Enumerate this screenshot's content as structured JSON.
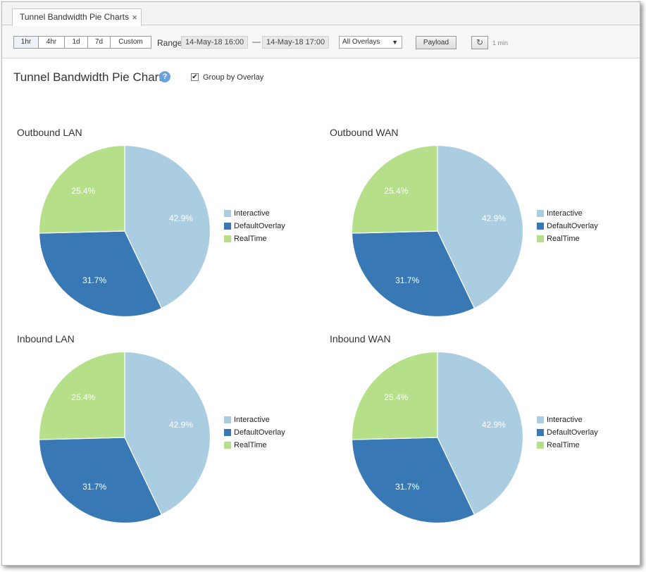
{
  "tab": {
    "label": "Tunnel Bandwidth Pie Charts",
    "close": "×"
  },
  "toolbar": {
    "time_buttons": [
      "1hr",
      "4hr",
      "1d",
      "7d",
      "Custom"
    ],
    "range_label": "Range",
    "range_start": "14-May-18 16:00",
    "range_separator": "—",
    "range_end": "14-May-18 17:00",
    "overlay_select": "All Overlays",
    "payload_label": "Payload",
    "refresh_icon": "↻",
    "interval": "1 min"
  },
  "page": {
    "title": "Tunnel Bandwidth Pie Charts",
    "help": "?",
    "group_by_label": "Group by Overlay",
    "group_by_checked": true
  },
  "colors": {
    "Interactive": "#abcde2",
    "DefaultOverlay": "#3778b5",
    "RealTime": "#b5df88"
  },
  "legend": [
    "Interactive",
    "DefaultOverlay",
    "RealTime"
  ],
  "chart_data": [
    {
      "type": "pie",
      "title": "Outbound LAN",
      "labels": [
        "Interactive",
        "DefaultOverlay",
        "RealTime"
      ],
      "values": [
        42.9,
        31.7,
        25.4
      ],
      "value_labels": [
        "42.9%",
        "31.7%",
        "25.4%"
      ]
    },
    {
      "type": "pie",
      "title": "Outbound WAN",
      "labels": [
        "Interactive",
        "DefaultOverlay",
        "RealTime"
      ],
      "values": [
        42.9,
        31.7,
        25.4
      ],
      "value_labels": [
        "42.9%",
        "31.7%",
        "25.4%"
      ]
    },
    {
      "type": "pie",
      "title": "Inbound LAN",
      "labels": [
        "Interactive",
        "DefaultOverlay",
        "RealTime"
      ],
      "values": [
        42.9,
        31.7,
        25.4
      ],
      "value_labels": [
        "42.9%",
        "31.7%",
        "25.4%"
      ]
    },
    {
      "type": "pie",
      "title": "Inbound WAN",
      "labels": [
        "Interactive",
        "DefaultOverlay",
        "RealTime"
      ],
      "values": [
        42.9,
        31.7,
        25.4
      ],
      "value_labels": [
        "42.9%",
        "31.7%",
        "25.4%"
      ]
    }
  ]
}
